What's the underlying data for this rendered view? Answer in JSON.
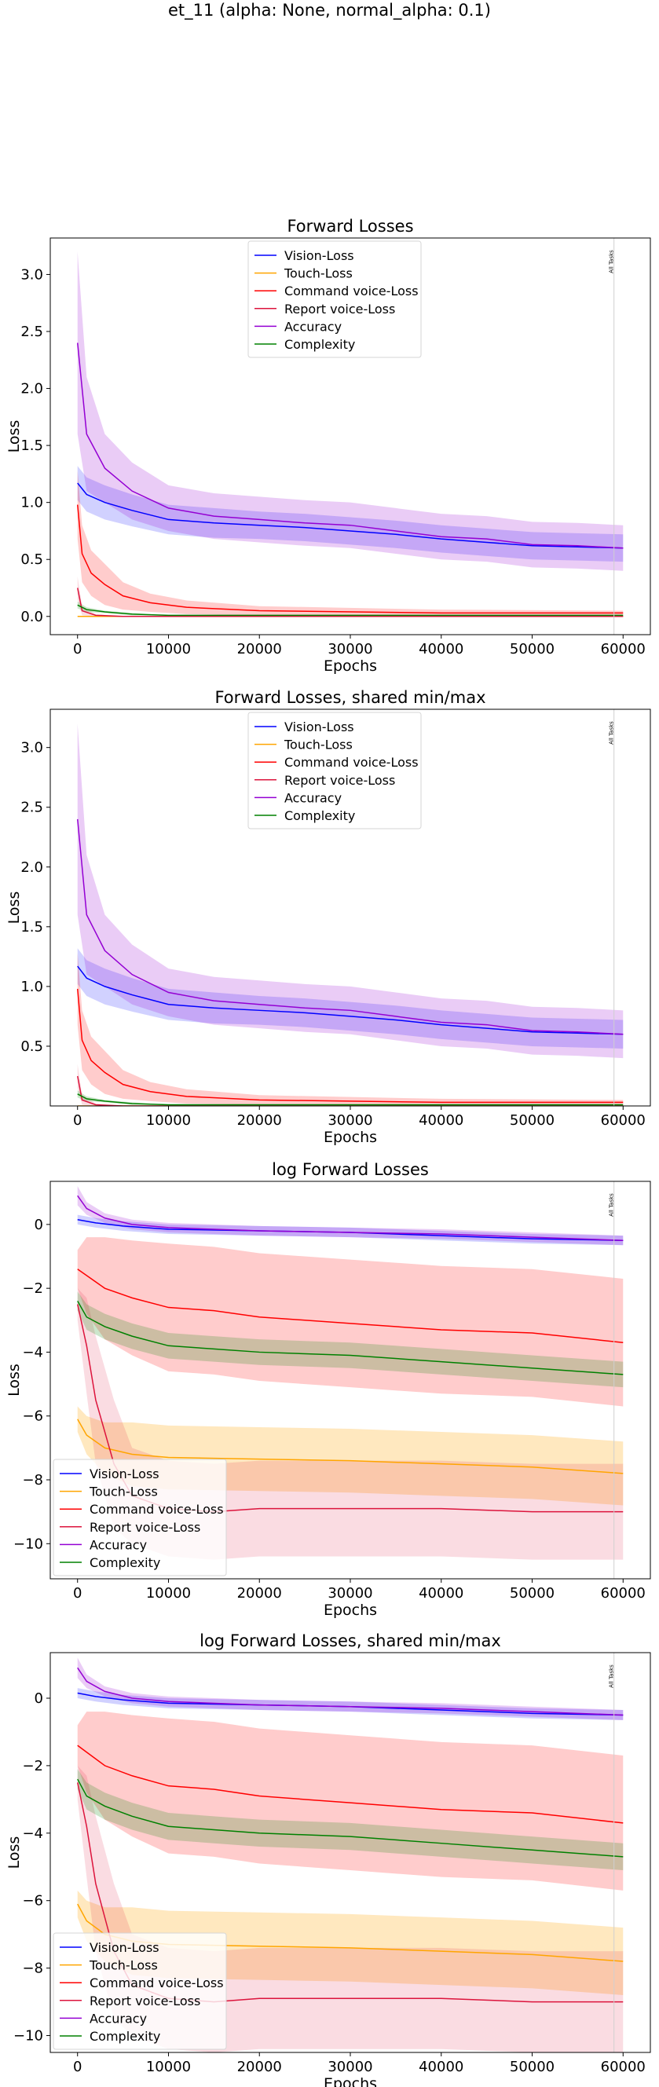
{
  "figure": {
    "title": "et_11 (alpha: None, normal_alpha: 0.1)"
  },
  "colors": {
    "Vision-Loss": "#0000ff",
    "Touch-Loss": "#ffa500",
    "Command voice-Loss": "#ff0000",
    "Report voice-Loss": "#dc143c",
    "Accuracy": "#9400d3",
    "Complexity": "#008000"
  },
  "vline_label": "All Tasks",
  "chart_data": [
    {
      "type": "line",
      "title": "Forward Losses",
      "xlabel": "Epochs",
      "ylabel": "Loss",
      "xlim": [
        -3000,
        63000
      ],
      "ylim": [
        -0.16,
        3.32
      ],
      "xticks": [
        0,
        10000,
        20000,
        30000,
        40000,
        50000,
        60000
      ],
      "yticks": [
        0.0,
        0.5,
        1.0,
        1.5,
        2.0,
        2.5,
        3.0
      ],
      "ytick_labels": [
        "0.0",
        "0.5",
        "1.0",
        "1.5",
        "2.0",
        "2.5",
        "3.0"
      ],
      "legend_position": "upper center",
      "grid": false,
      "vline_x": 59000,
      "series": [
        {
          "name": "Vision-Loss",
          "x": [
            0,
            1000,
            3000,
            6000,
            10000,
            15000,
            20000,
            25000,
            30000,
            35000,
            40000,
            45000,
            50000,
            55000,
            60000
          ],
          "values": [
            1.17,
            1.07,
            1.0,
            0.93,
            0.85,
            0.82,
            0.8,
            0.78,
            0.75,
            0.72,
            0.68,
            0.65,
            0.62,
            0.61,
            0.6
          ],
          "band": [
            0.15,
            0.15,
            0.15,
            0.14,
            0.13,
            0.13,
            0.12,
            0.12,
            0.12,
            0.12,
            0.12,
            0.12,
            0.12,
            0.12,
            0.12
          ]
        },
        {
          "name": "Touch-Loss",
          "x": [
            0,
            1000,
            2000,
            5000,
            60000
          ],
          "values": [
            0.0,
            0.0,
            0.0,
            0.0,
            0.0
          ],
          "band": [
            0.0,
            0.0,
            0.0,
            0.0,
            0.0
          ]
        },
        {
          "name": "Command voice-Loss",
          "x": [
            0,
            500,
            1500,
            3000,
            5000,
            8000,
            12000,
            20000,
            40000,
            60000
          ],
          "values": [
            0.98,
            0.55,
            0.38,
            0.28,
            0.18,
            0.12,
            0.08,
            0.05,
            0.03,
            0.03
          ],
          "band": [
            0.3,
            0.25,
            0.2,
            0.18,
            0.12,
            0.08,
            0.06,
            0.04,
            0.03,
            0.02
          ]
        },
        {
          "name": "Report voice-Loss",
          "x": [
            0,
            500,
            2000,
            5000,
            60000
          ],
          "values": [
            0.25,
            0.05,
            0.01,
            0.0,
            0.0
          ],
          "band": [
            0.1,
            0.04,
            0.01,
            0.0,
            0.0
          ]
        },
        {
          "name": "Accuracy",
          "x": [
            0,
            1000,
            3000,
            6000,
            10000,
            15000,
            20000,
            25000,
            30000,
            35000,
            40000,
            45000,
            50000,
            55000,
            60000
          ],
          "values": [
            2.4,
            1.6,
            1.3,
            1.1,
            0.95,
            0.88,
            0.85,
            0.82,
            0.8,
            0.75,
            0.7,
            0.68,
            0.63,
            0.62,
            0.6
          ],
          "band": [
            0.8,
            0.5,
            0.3,
            0.25,
            0.2,
            0.2,
            0.2,
            0.2,
            0.2,
            0.2,
            0.2,
            0.2,
            0.2,
            0.2,
            0.2
          ]
        },
        {
          "name": "Complexity",
          "x": [
            0,
            1000,
            3000,
            6000,
            10000,
            60000
          ],
          "values": [
            0.1,
            0.06,
            0.04,
            0.02,
            0.01,
            0.01
          ],
          "band": [
            0.03,
            0.02,
            0.01,
            0.01,
            0.0,
            0.0
          ]
        }
      ]
    },
    {
      "type": "line",
      "title": "Forward Losses, shared min/max",
      "xlabel": "Epochs",
      "ylabel": "Loss",
      "xlim": [
        -3000,
        63000
      ],
      "ylim": [
        0.0,
        3.32
      ],
      "xticks": [
        0,
        10000,
        20000,
        30000,
        40000,
        50000,
        60000
      ],
      "yticks": [
        0.5,
        1.0,
        1.5,
        2.0,
        2.5,
        3.0
      ],
      "ytick_labels": [
        "0.5",
        "1.0",
        "1.5",
        "2.0",
        "2.5",
        "3.0"
      ],
      "legend_position": "upper center",
      "grid": false,
      "vline_x": 59000,
      "series": [
        {
          "name": "Vision-Loss",
          "x": [
            0,
            1000,
            3000,
            6000,
            10000,
            15000,
            20000,
            25000,
            30000,
            35000,
            40000,
            45000,
            50000,
            55000,
            60000
          ],
          "values": [
            1.17,
            1.07,
            1.0,
            0.93,
            0.85,
            0.82,
            0.8,
            0.78,
            0.75,
            0.72,
            0.68,
            0.65,
            0.62,
            0.61,
            0.6
          ],
          "band": [
            0.15,
            0.15,
            0.15,
            0.14,
            0.13,
            0.13,
            0.12,
            0.12,
            0.12,
            0.12,
            0.12,
            0.12,
            0.12,
            0.12,
            0.12
          ]
        },
        {
          "name": "Touch-Loss",
          "x": [
            0,
            1000,
            2000,
            5000,
            60000
          ],
          "values": [
            0.0,
            0.0,
            0.0,
            0.0,
            0.0
          ],
          "band": [
            0.0,
            0.0,
            0.0,
            0.0,
            0.0
          ]
        },
        {
          "name": "Command voice-Loss",
          "x": [
            0,
            500,
            1500,
            3000,
            5000,
            8000,
            12000,
            20000,
            40000,
            60000
          ],
          "values": [
            0.98,
            0.55,
            0.38,
            0.28,
            0.18,
            0.12,
            0.08,
            0.05,
            0.03,
            0.03
          ],
          "band": [
            0.3,
            0.25,
            0.2,
            0.18,
            0.12,
            0.08,
            0.06,
            0.04,
            0.03,
            0.02
          ]
        },
        {
          "name": "Report voice-Loss",
          "x": [
            0,
            500,
            2000,
            5000,
            60000
          ],
          "values": [
            0.25,
            0.05,
            0.01,
            0.0,
            0.0
          ],
          "band": [
            0.1,
            0.04,
            0.01,
            0.0,
            0.0
          ]
        },
        {
          "name": "Accuracy",
          "x": [
            0,
            1000,
            3000,
            6000,
            10000,
            15000,
            20000,
            25000,
            30000,
            35000,
            40000,
            45000,
            50000,
            55000,
            60000
          ],
          "values": [
            2.4,
            1.6,
            1.3,
            1.1,
            0.95,
            0.88,
            0.85,
            0.82,
            0.8,
            0.75,
            0.7,
            0.68,
            0.63,
            0.62,
            0.6
          ],
          "band": [
            0.8,
            0.5,
            0.3,
            0.25,
            0.2,
            0.2,
            0.2,
            0.2,
            0.2,
            0.2,
            0.2,
            0.2,
            0.2,
            0.2,
            0.2
          ]
        },
        {
          "name": "Complexity",
          "x": [
            0,
            1000,
            3000,
            6000,
            10000,
            60000
          ],
          "values": [
            0.1,
            0.06,
            0.04,
            0.02,
            0.01,
            0.01
          ],
          "band": [
            0.03,
            0.02,
            0.01,
            0.01,
            0.0,
            0.0
          ]
        }
      ]
    },
    {
      "type": "line",
      "title": "log Forward Losses",
      "xlabel": "Epochs",
      "ylabel": "Loss",
      "xlim": [
        -3000,
        63000
      ],
      "ylim": [
        -11.1,
        1.35
      ],
      "xticks": [
        0,
        10000,
        20000,
        30000,
        40000,
        50000,
        60000
      ],
      "yticks": [
        0,
        -2,
        -4,
        -6,
        -8,
        -10
      ],
      "ytick_labels": [
        "0",
        "−2",
        "−4",
        "−6",
        "−8",
        "−10"
      ],
      "legend_position": "lower left",
      "grid": false,
      "vline_x": 59000,
      "series": [
        {
          "name": "Vision-Loss",
          "x": [
            0,
            2000,
            5000,
            10000,
            20000,
            30000,
            40000,
            50000,
            60000
          ],
          "values": [
            0.15,
            0.05,
            -0.05,
            -0.15,
            -0.2,
            -0.25,
            -0.35,
            -0.45,
            -0.5
          ],
          "band": [
            0.15,
            0.15,
            0.15,
            0.15,
            0.15,
            0.15,
            0.15,
            0.15,
            0.15
          ]
        },
        {
          "name": "Touch-Loss",
          "x": [
            0,
            1000,
            3000,
            6000,
            10000,
            20000,
            30000,
            40000,
            50000,
            60000
          ],
          "values": [
            -6.1,
            -6.6,
            -7.0,
            -7.2,
            -7.3,
            -7.35,
            -7.4,
            -7.5,
            -7.6,
            -7.8
          ],
          "band": [
            0.4,
            0.6,
            0.8,
            1.0,
            1.0,
            1.0,
            1.0,
            1.0,
            1.0,
            1.0
          ]
        },
        {
          "name": "Command voice-Loss",
          "x": [
            0,
            1000,
            3000,
            6000,
            10000,
            15000,
            20000,
            30000,
            40000,
            50000,
            60000
          ],
          "values": [
            -1.4,
            -1.6,
            -2.0,
            -2.3,
            -2.6,
            -2.7,
            -2.9,
            -3.1,
            -3.3,
            -3.4,
            -3.7
          ],
          "band": [
            0.6,
            1.2,
            1.6,
            1.8,
            2.0,
            2.0,
            2.0,
            2.0,
            2.0,
            2.0,
            2.0
          ]
        },
        {
          "name": "Report voice-Loss",
          "x": [
            0,
            1000,
            2000,
            4000,
            6000,
            10000,
            15000,
            20000,
            30000,
            40000,
            50000,
            60000
          ],
          "values": [
            -2.5,
            -3.8,
            -5.5,
            -7.5,
            -8.5,
            -8.9,
            -9.0,
            -8.9,
            -8.9,
            -8.9,
            -9.0,
            -9.0
          ],
          "band": [
            0.5,
            1.5,
            2.0,
            2.0,
            1.5,
            1.5,
            1.5,
            1.5,
            1.5,
            1.5,
            1.5,
            1.5
          ]
        },
        {
          "name": "Accuracy",
          "x": [
            0,
            1000,
            3000,
            6000,
            10000,
            20000,
            30000,
            40000,
            50000,
            60000
          ],
          "values": [
            0.9,
            0.5,
            0.2,
            0.0,
            -0.1,
            -0.2,
            -0.25,
            -0.3,
            -0.4,
            -0.5
          ],
          "band": [
            0.3,
            0.2,
            0.15,
            0.15,
            0.15,
            0.15,
            0.15,
            0.15,
            0.15,
            0.15
          ]
        },
        {
          "name": "Complexity",
          "x": [
            0,
            1000,
            3000,
            6000,
            10000,
            15000,
            20000,
            30000,
            40000,
            50000,
            60000
          ],
          "values": [
            -2.4,
            -2.9,
            -3.2,
            -3.5,
            -3.8,
            -3.9,
            -4.0,
            -4.1,
            -4.3,
            -4.5,
            -4.7
          ],
          "band": [
            0.3,
            0.4,
            0.4,
            0.4,
            0.4,
            0.4,
            0.4,
            0.4,
            0.4,
            0.4,
            0.4
          ]
        }
      ]
    },
    {
      "type": "line",
      "title": "log Forward Losses, shared min/max",
      "xlabel": "Epochs",
      "ylabel": "Loss",
      "xlim": [
        -3000,
        63000
      ],
      "ylim": [
        -10.5,
        1.35
      ],
      "xticks": [
        0,
        10000,
        20000,
        30000,
        40000,
        50000,
        60000
      ],
      "yticks": [
        0,
        -2,
        -4,
        -6,
        -8,
        -10
      ],
      "ytick_labels": [
        "0",
        "−2",
        "−4",
        "−6",
        "−8",
        "−10"
      ],
      "legend_position": "lower left",
      "grid": false,
      "vline_x": 59000,
      "series": [
        {
          "name": "Vision-Loss",
          "x": [
            0,
            2000,
            5000,
            10000,
            20000,
            30000,
            40000,
            50000,
            60000
          ],
          "values": [
            0.15,
            0.05,
            -0.05,
            -0.15,
            -0.2,
            -0.25,
            -0.35,
            -0.45,
            -0.5
          ],
          "band": [
            0.15,
            0.15,
            0.15,
            0.15,
            0.15,
            0.15,
            0.15,
            0.15,
            0.15
          ]
        },
        {
          "name": "Touch-Loss",
          "x": [
            0,
            1000,
            3000,
            6000,
            10000,
            20000,
            30000,
            40000,
            50000,
            60000
          ],
          "values": [
            -6.1,
            -6.6,
            -7.0,
            -7.2,
            -7.3,
            -7.35,
            -7.4,
            -7.5,
            -7.6,
            -7.8
          ],
          "band": [
            0.4,
            0.6,
            0.8,
            1.0,
            1.0,
            1.0,
            1.0,
            1.0,
            1.0,
            1.0
          ]
        },
        {
          "name": "Command voice-Loss",
          "x": [
            0,
            1000,
            3000,
            6000,
            10000,
            15000,
            20000,
            30000,
            40000,
            50000,
            60000
          ],
          "values": [
            -1.4,
            -1.6,
            -2.0,
            -2.3,
            -2.6,
            -2.7,
            -2.9,
            -3.1,
            -3.3,
            -3.4,
            -3.7
          ],
          "band": [
            0.6,
            1.2,
            1.6,
            1.8,
            2.0,
            2.0,
            2.0,
            2.0,
            2.0,
            2.0,
            2.0
          ]
        },
        {
          "name": "Report voice-Loss",
          "x": [
            0,
            1000,
            2000,
            4000,
            6000,
            10000,
            15000,
            20000,
            30000,
            40000,
            50000,
            60000
          ],
          "values": [
            -2.5,
            -3.8,
            -5.5,
            -7.5,
            -8.5,
            -8.9,
            -9.0,
            -8.9,
            -8.9,
            -8.9,
            -9.0,
            -9.0
          ],
          "band": [
            0.5,
            1.5,
            2.0,
            2.0,
            1.5,
            1.5,
            1.5,
            1.5,
            1.5,
            1.5,
            1.5,
            1.5
          ]
        },
        {
          "name": "Accuracy",
          "x": [
            0,
            1000,
            3000,
            6000,
            10000,
            20000,
            30000,
            40000,
            50000,
            60000
          ],
          "values": [
            0.9,
            0.5,
            0.2,
            0.0,
            -0.1,
            -0.2,
            -0.25,
            -0.3,
            -0.4,
            -0.5
          ],
          "band": [
            0.3,
            0.2,
            0.15,
            0.15,
            0.15,
            0.15,
            0.15,
            0.15,
            0.15,
            0.15
          ]
        },
        {
          "name": "Complexity",
          "x": [
            0,
            1000,
            3000,
            6000,
            10000,
            15000,
            20000,
            30000,
            40000,
            50000,
            60000
          ],
          "values": [
            -2.4,
            -2.9,
            -3.2,
            -3.5,
            -3.8,
            -3.9,
            -4.0,
            -4.1,
            -4.3,
            -4.5,
            -4.7
          ],
          "band": [
            0.3,
            0.4,
            0.4,
            0.4,
            0.4,
            0.4,
            0.4,
            0.4,
            0.4,
            0.4,
            0.4
          ]
        }
      ]
    }
  ]
}
